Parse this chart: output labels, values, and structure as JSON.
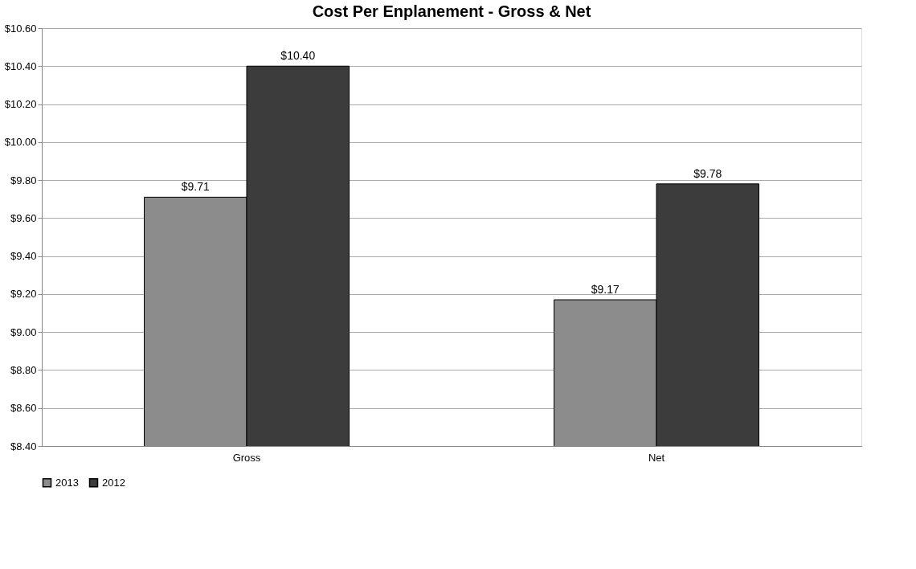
{
  "chart_data": {
    "type": "bar",
    "title": "Cost Per Enplanement - Gross & Net",
    "categories": [
      "Gross",
      "Net"
    ],
    "series": [
      {
        "name": "2013",
        "color": "#8c8c8c",
        "values": [
          9.71,
          9.17
        ],
        "value_labels": [
          "$9.71",
          "$9.17"
        ]
      },
      {
        "name": "2012",
        "color": "#3c3c3c",
        "values": [
          10.4,
          9.78
        ],
        "value_labels": [
          "$10.40",
          "$9.78"
        ]
      }
    ],
    "ylim": [
      8.4,
      10.6
    ],
    "yticks": [
      {
        "value": 8.4,
        "label": "$8.40"
      },
      {
        "value": 8.6,
        "label": "$8.60"
      },
      {
        "value": 8.8,
        "label": "$8.80"
      },
      {
        "value": 9.0,
        "label": "$9.00"
      },
      {
        "value": 9.2,
        "label": "$9.20"
      },
      {
        "value": 9.4,
        "label": "$9.40"
      },
      {
        "value": 9.6,
        "label": "$9.60"
      },
      {
        "value": 9.8,
        "label": "$9.80"
      },
      {
        "value": 10.0,
        "label": "$10.00"
      },
      {
        "value": 10.2,
        "label": "$10.20"
      },
      {
        "value": 10.4,
        "label": "$10.40"
      },
      {
        "value": 10.6,
        "label": "$10.60"
      }
    ],
    "grid": "y",
    "legend": "bottom"
  }
}
